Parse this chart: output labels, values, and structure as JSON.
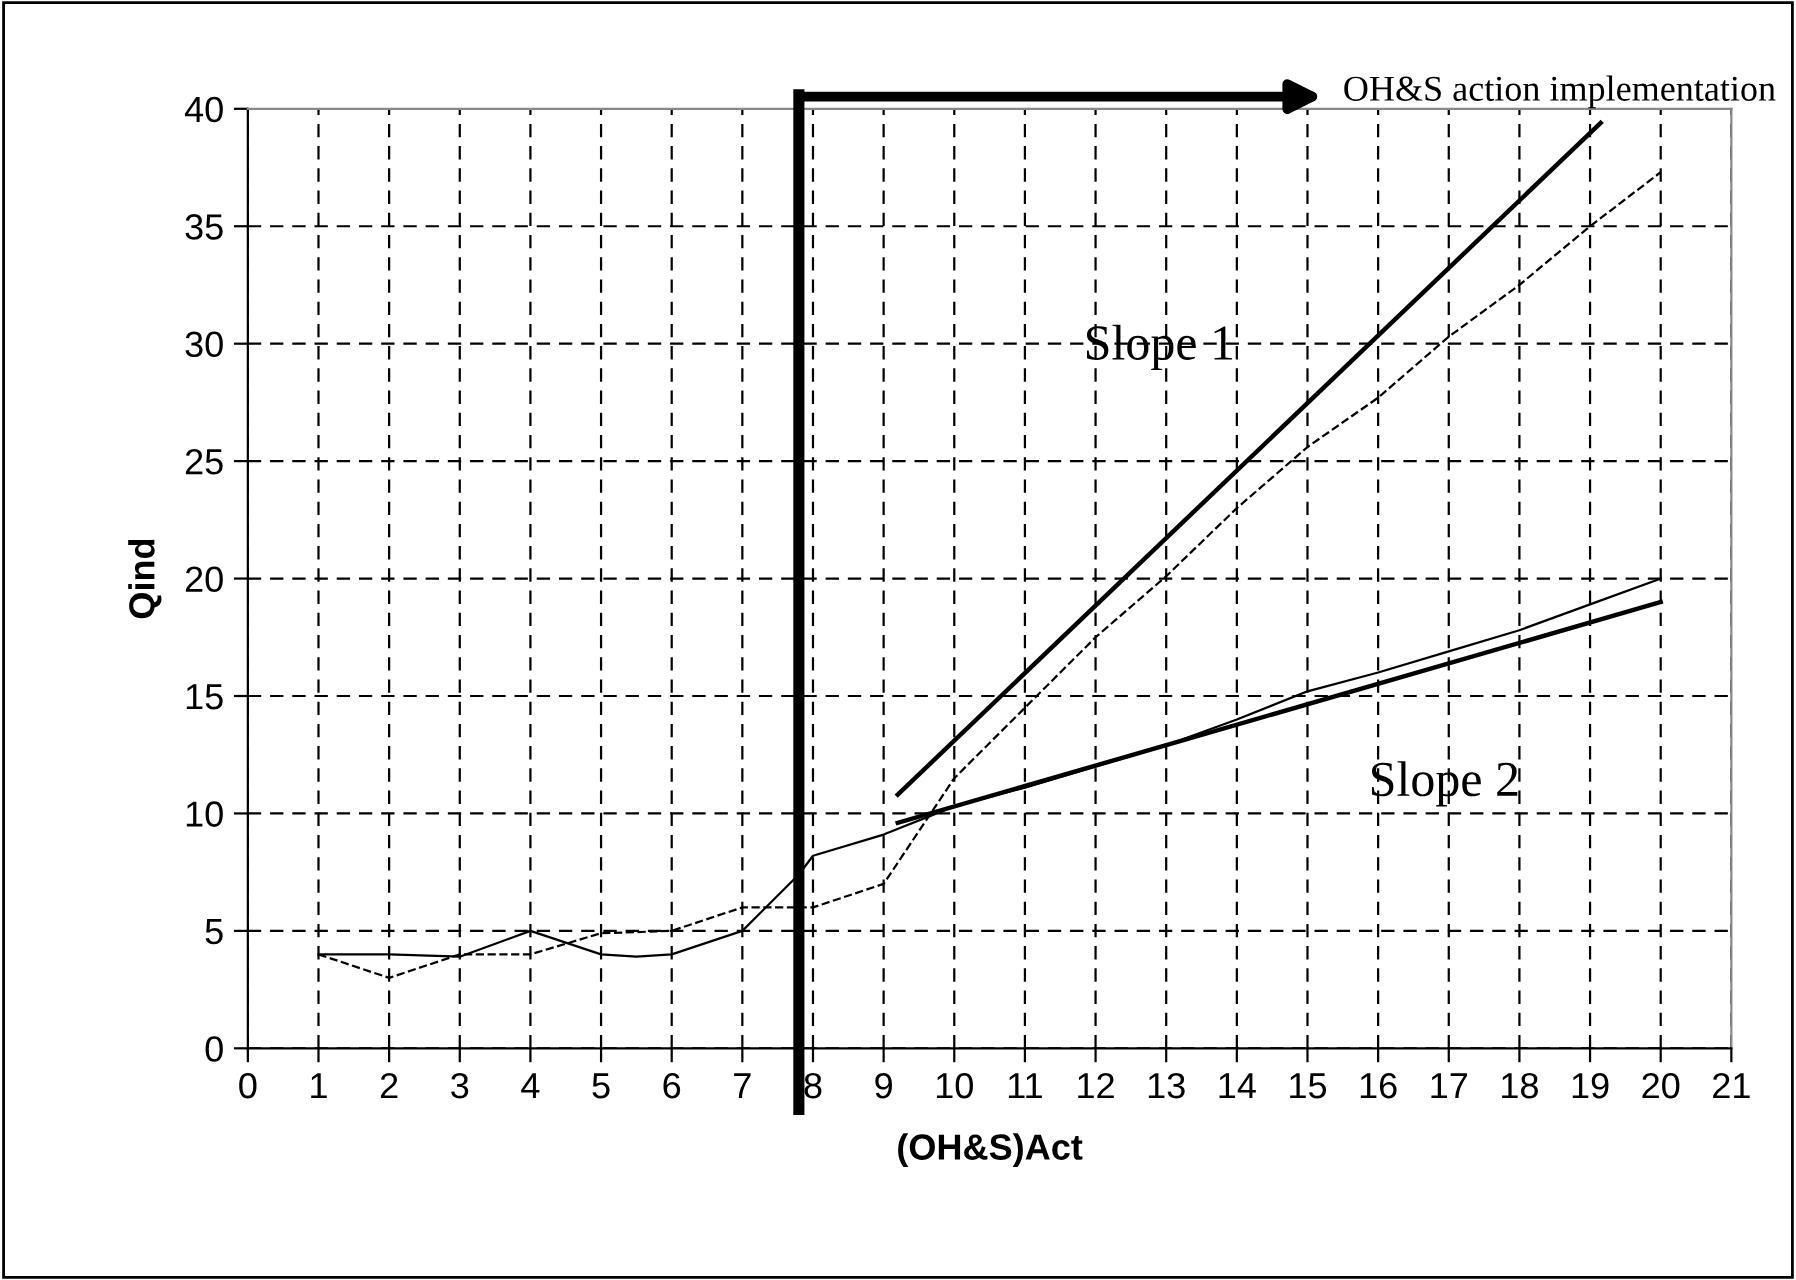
{
  "chart_data": {
    "type": "line",
    "xlabel": "(OH&S)Act",
    "ylabel": "Qind",
    "xlim": [
      0,
      21
    ],
    "xticks": [
      0,
      1,
      2,
      3,
      4,
      5,
      6,
      7,
      8,
      9,
      10,
      11,
      12,
      13,
      14,
      15,
      16,
      17,
      18,
      19,
      20,
      21
    ],
    "ylim": [
      0,
      40
    ],
    "yticks": [
      0,
      5,
      10,
      15,
      20,
      25,
      30,
      35,
      40
    ],
    "grid": true,
    "marker": "none",
    "series": [
      {
        "color": "#000000",
        "line_style": "solid",
        "x": [
          1,
          2,
          3,
          4,
          5,
          5.5,
          6,
          7,
          7.8,
          8,
          9,
          10,
          11,
          12,
          13,
          14,
          15,
          16,
          17,
          18,
          19,
          20
        ],
        "values": [
          4,
          4,
          3.9,
          5,
          4,
          3.9,
          4,
          5,
          7.4,
          8.2,
          9.1,
          10.3,
          11.1,
          12,
          12.9,
          14,
          15.2,
          16,
          16.9,
          17.8,
          18.9,
          20
        ]
      },
      {
        "color": "#000000",
        "line_style": "dashed",
        "x": [
          1,
          2,
          3,
          4,
          5,
          6,
          7,
          8,
          9,
          10,
          11,
          12,
          13,
          14,
          15,
          16,
          17,
          18,
          19,
          20
        ],
        "values": [
          4,
          3,
          4,
          4,
          4.9,
          5,
          6,
          6,
          7,
          11.5,
          14.5,
          17.5,
          20.1,
          23,
          25.6,
          27.7,
          30.3,
          32.5,
          35,
          37.3
        ]
      },
      {
        "name": "Slope 1",
        "color": "#000000",
        "line_style": "solid",
        "x": [
          9.2,
          19.15
        ],
        "values": [
          10.8,
          39.4
        ]
      },
      {
        "name": "Slope 2",
        "color": "#000000",
        "line_style": "solid",
        "x": [
          9.2,
          20
        ],
        "values": [
          9.6,
          19
        ]
      }
    ],
    "ref_lines": [
      {
        "axis": "x",
        "value": 7.8,
        "label": "OH&S action implementation",
        "color": "#000000"
      }
    ]
  }
}
